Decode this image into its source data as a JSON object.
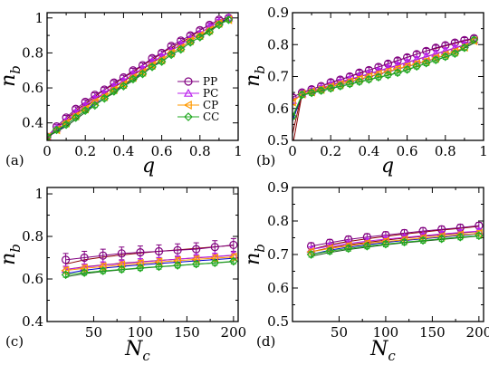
{
  "colors": {
    "PP": "#800080",
    "PC": "#bb22ee",
    "CP": "#ff9900",
    "CC": "#22aa22",
    "fitPP": "#8b0000",
    "fitPC": "#8b0000",
    "fitCP": "#0000cc",
    "fitCC": "#1a5c1a"
  },
  "legend": {
    "entries": [
      {
        "name": "PP",
        "marker": "circle"
      },
      {
        "name": "PC",
        "marker": "triangle-up"
      },
      {
        "name": "CP",
        "marker": "triangle-left"
      },
      {
        "name": "CC",
        "marker": "diamond"
      }
    ]
  },
  "chart_data": [
    {
      "panel": "a",
      "tag": "(a)",
      "type": "line",
      "xlabel": "q",
      "ylabel_main": "n",
      "ylabel_sub": "b",
      "xlim": [
        0,
        1
      ],
      "ylim": [
        0.3,
        1.03
      ],
      "xticks": [
        0,
        0.2,
        0.4,
        0.6,
        0.8,
        1
      ],
      "xtick_labels": [
        "0",
        "0.2",
        "0.4",
        "0.6",
        "0.8",
        "1"
      ],
      "yticks": [
        0.4,
        0.6,
        0.8,
        1
      ],
      "ytick_labels": [
        "0.4",
        "0.6",
        "0.8",
        "1"
      ],
      "legend_position": "right-center",
      "x": [
        0,
        0.05,
        0.1,
        0.15,
        0.2,
        0.25,
        0.3,
        0.35,
        0.4,
        0.45,
        0.5,
        0.55,
        0.6,
        0.65,
        0.7,
        0.75,
        0.8,
        0.85,
        0.9,
        0.95
      ],
      "series": [
        {
          "name": "PP",
          "values": [
            0.32,
            0.38,
            0.43,
            0.48,
            0.52,
            0.56,
            0.59,
            0.63,
            0.66,
            0.7,
            0.73,
            0.77,
            0.8,
            0.84,
            0.87,
            0.9,
            0.93,
            0.96,
            0.99,
            1.0
          ],
          "err": 0.012,
          "fit": [
            0.3,
            0.37,
            0.42,
            0.47,
            0.51,
            0.55,
            0.59,
            0.62,
            0.66,
            0.69,
            0.73,
            0.76,
            0.8,
            0.83,
            0.86,
            0.89,
            0.93,
            0.96,
            0.99,
            1.0
          ]
        },
        {
          "name": "PC",
          "values": [
            0.32,
            0.37,
            0.41,
            0.46,
            0.5,
            0.54,
            0.57,
            0.61,
            0.64,
            0.68,
            0.71,
            0.75,
            0.78,
            0.81,
            0.85,
            0.88,
            0.91,
            0.95,
            0.98,
            1.0
          ],
          "err": 0.012,
          "fit": [
            0.31,
            0.36,
            0.4,
            0.45,
            0.49,
            0.53,
            0.57,
            0.6,
            0.64,
            0.67,
            0.71,
            0.74,
            0.78,
            0.81,
            0.85,
            0.88,
            0.91,
            0.95,
            0.98,
            1.0
          ]
        },
        {
          "name": "CP",
          "values": [
            0.32,
            0.36,
            0.4,
            0.44,
            0.48,
            0.52,
            0.55,
            0.59,
            0.62,
            0.66,
            0.69,
            0.73,
            0.76,
            0.8,
            0.83,
            0.87,
            0.9,
            0.93,
            0.97,
            0.99
          ],
          "err": 0.012,
          "fit": [
            0.32,
            0.35,
            0.39,
            0.43,
            0.47,
            0.51,
            0.54,
            0.58,
            0.62,
            0.65,
            0.69,
            0.72,
            0.76,
            0.8,
            0.83,
            0.87,
            0.9,
            0.93,
            0.97,
            1.0
          ]
        },
        {
          "name": "CC",
          "values": [
            0.32,
            0.36,
            0.39,
            0.43,
            0.47,
            0.5,
            0.54,
            0.58,
            0.61,
            0.65,
            0.68,
            0.72,
            0.75,
            0.79,
            0.82,
            0.86,
            0.89,
            0.92,
            0.96,
            0.99
          ],
          "err": 0.012,
          "fit": [
            0.32,
            0.35,
            0.38,
            0.42,
            0.46,
            0.5,
            0.54,
            0.57,
            0.61,
            0.64,
            0.68,
            0.72,
            0.75,
            0.79,
            0.82,
            0.86,
            0.89,
            0.93,
            0.96,
            1.0
          ]
        }
      ]
    },
    {
      "panel": "b",
      "tag": "(b)",
      "type": "line",
      "xlabel": "q",
      "ylabel_main": "n",
      "ylabel_sub": "b",
      "xlim": [
        0,
        1
      ],
      "ylim": [
        0.5,
        0.9
      ],
      "xticks": [
        0,
        0.2,
        0.4,
        0.6,
        0.8,
        1
      ],
      "xtick_labels": [
        "0",
        "0.2",
        "0.4",
        "0.6",
        "0.8",
        "1"
      ],
      "yticks": [
        0.5,
        0.6,
        0.7,
        0.8,
        0.9
      ],
      "ytick_labels": [
        "0.5",
        "0.6",
        "0.7",
        "0.8",
        "0.9"
      ],
      "x": [
        0,
        0.05,
        0.1,
        0.15,
        0.2,
        0.25,
        0.3,
        0.35,
        0.4,
        0.45,
        0.5,
        0.55,
        0.6,
        0.65,
        0.7,
        0.75,
        0.8,
        0.85,
        0.9,
        0.95
      ],
      "series": [
        {
          "name": "PP",
          "values": [
            0.635,
            0.65,
            0.66,
            0.67,
            0.682,
            0.69,
            0.7,
            0.712,
            0.72,
            0.73,
            0.74,
            0.75,
            0.76,
            0.77,
            0.78,
            0.79,
            0.798,
            0.806,
            0.814,
            0.82
          ],
          "err": 0.008,
          "fit": [
            0.52,
            0.65,
            0.66,
            0.67,
            0.68,
            0.69,
            0.7,
            0.71,
            0.72,
            0.73,
            0.74,
            0.75,
            0.76,
            0.77,
            0.78,
            0.788,
            0.796,
            0.804,
            0.812,
            0.818
          ]
        },
        {
          "name": "PC",
          "values": [
            0.625,
            0.646,
            0.655,
            0.664,
            0.674,
            0.683,
            0.692,
            0.7,
            0.709,
            0.718,
            0.727,
            0.736,
            0.745,
            0.754,
            0.763,
            0.772,
            0.781,
            0.79,
            0.8,
            0.815
          ],
          "err": 0.008,
          "fit": [
            0.48,
            0.645,
            0.654,
            0.663,
            0.672,
            0.681,
            0.69,
            0.699,
            0.708,
            0.717,
            0.726,
            0.735,
            0.744,
            0.753,
            0.762,
            0.771,
            0.78,
            0.789,
            0.798,
            0.808
          ]
        },
        {
          "name": "CP",
          "values": [
            0.62,
            0.645,
            0.652,
            0.66,
            0.668,
            0.676,
            0.684,
            0.692,
            0.7,
            0.708,
            0.716,
            0.724,
            0.732,
            0.74,
            0.748,
            0.758,
            0.768,
            0.778,
            0.792,
            0.812
          ],
          "err": 0.008,
          "fit": [
            0.56,
            0.644,
            0.651,
            0.659,
            0.667,
            0.675,
            0.683,
            0.691,
            0.699,
            0.707,
            0.715,
            0.723,
            0.731,
            0.739,
            0.747,
            0.757,
            0.767,
            0.777,
            0.79,
            0.805
          ]
        },
        {
          "name": "CC",
          "values": [
            0.575,
            0.643,
            0.649,
            0.656,
            0.663,
            0.67,
            0.677,
            0.684,
            0.691,
            0.698,
            0.705,
            0.712,
            0.722,
            0.732,
            0.742,
            0.752,
            0.762,
            0.772,
            0.79,
            0.815
          ],
          "err": 0.008,
          "fit": [
            0.57,
            0.642,
            0.648,
            0.655,
            0.662,
            0.669,
            0.676,
            0.683,
            0.69,
            0.697,
            0.704,
            0.711,
            0.721,
            0.731,
            0.741,
            0.751,
            0.761,
            0.771,
            0.789,
            0.805
          ]
        }
      ]
    },
    {
      "panel": "c",
      "tag": "(c)",
      "type": "line",
      "xlabel": "N",
      "xlabel_sub": "c",
      "ylabel_main": "n",
      "ylabel_sub": "b",
      "xlim": [
        0,
        205
      ],
      "ylim": [
        0.4,
        1.03
      ],
      "xticks": [
        50,
        100,
        150,
        200
      ],
      "xtick_labels": [
        "50",
        "100",
        "150",
        "200"
      ],
      "yticks": [
        0.4,
        0.6,
        0.8,
        1
      ],
      "ytick_labels": [
        "0.4",
        "0.6",
        "0.8",
        "1"
      ],
      "x": [
        20,
        40,
        60,
        80,
        100,
        120,
        140,
        160,
        180,
        200
      ],
      "series": [
        {
          "name": "PP",
          "values": [
            0.69,
            0.7,
            0.71,
            0.72,
            0.725,
            0.73,
            0.735,
            0.74,
            0.75,
            0.76
          ],
          "err": 0.03,
          "fit": [
            0.67,
            0.69,
            0.703,
            0.713,
            0.722,
            0.73,
            0.737,
            0.744,
            0.751,
            0.758
          ]
        },
        {
          "name": "PC",
          "values": [
            0.645,
            0.655,
            0.665,
            0.672,
            0.68,
            0.686,
            0.693,
            0.7,
            0.706,
            0.712
          ],
          "err": 0.015,
          "fit": [
            0.645,
            0.657,
            0.666,
            0.674,
            0.681,
            0.687,
            0.693,
            0.699,
            0.705,
            0.711
          ]
        },
        {
          "name": "CP",
          "values": [
            0.64,
            0.65,
            0.658,
            0.666,
            0.673,
            0.68,
            0.686,
            0.692,
            0.698,
            0.703
          ],
          "err": 0.015,
          "fit": [
            0.625,
            0.641,
            0.651,
            0.659,
            0.666,
            0.673,
            0.679,
            0.685,
            0.691,
            0.697
          ]
        },
        {
          "name": "CC",
          "values": [
            0.62,
            0.63,
            0.638,
            0.645,
            0.652,
            0.658,
            0.664,
            0.67,
            0.676,
            0.683
          ],
          "err": 0.012,
          "fit": [
            0.61,
            0.625,
            0.635,
            0.643,
            0.65,
            0.657,
            0.663,
            0.669,
            0.675,
            0.681
          ]
        }
      ]
    },
    {
      "panel": "d",
      "tag": "(d)",
      "type": "line",
      "xlabel": "N",
      "xlabel_sub": "c",
      "ylabel_main": "n",
      "ylabel_sub": "b",
      "xlim": [
        0,
        205
      ],
      "ylim": [
        0.5,
        0.9
      ],
      "xticks": [
        50,
        100,
        150,
        200
      ],
      "xtick_labels": [
        "50",
        "100",
        "150",
        "200"
      ],
      "yticks": [
        0.5,
        0.6,
        0.7,
        0.8,
        0.9
      ],
      "ytick_labels": [
        "0.5",
        "0.6",
        "0.7",
        "0.8",
        "0.9"
      ],
      "x": [
        20,
        40,
        60,
        80,
        100,
        120,
        140,
        160,
        180,
        200
      ],
      "series": [
        {
          "name": "PP",
          "values": [
            0.725,
            0.735,
            0.745,
            0.752,
            0.758,
            0.764,
            0.77,
            0.775,
            0.78,
            0.786
          ],
          "err": 0.01,
          "fit": [
            0.715,
            0.729,
            0.739,
            0.747,
            0.754,
            0.761,
            0.767,
            0.773,
            0.778,
            0.784
          ]
        },
        {
          "name": "PC",
          "values": [
            0.715,
            0.725,
            0.733,
            0.74,
            0.746,
            0.751,
            0.756,
            0.761,
            0.766,
            0.77
          ],
          "err": 0.008,
          "fit": [
            0.708,
            0.72,
            0.729,
            0.736,
            0.743,
            0.749,
            0.754,
            0.759,
            0.764,
            0.769
          ]
        },
        {
          "name": "CP",
          "values": [
            0.708,
            0.718,
            0.726,
            0.733,
            0.739,
            0.744,
            0.749,
            0.754,
            0.759,
            0.763
          ],
          "err": 0.008,
          "fit": [
            0.7,
            0.713,
            0.722,
            0.729,
            0.736,
            0.742,
            0.747,
            0.752,
            0.757,
            0.762
          ]
        },
        {
          "name": "CC",
          "values": [
            0.7,
            0.71,
            0.718,
            0.725,
            0.731,
            0.737,
            0.742,
            0.747,
            0.752,
            0.756
          ],
          "err": 0.008,
          "fit": [
            0.695,
            0.706,
            0.715,
            0.722,
            0.729,
            0.735,
            0.74,
            0.745,
            0.75,
            0.755
          ]
        }
      ]
    }
  ]
}
